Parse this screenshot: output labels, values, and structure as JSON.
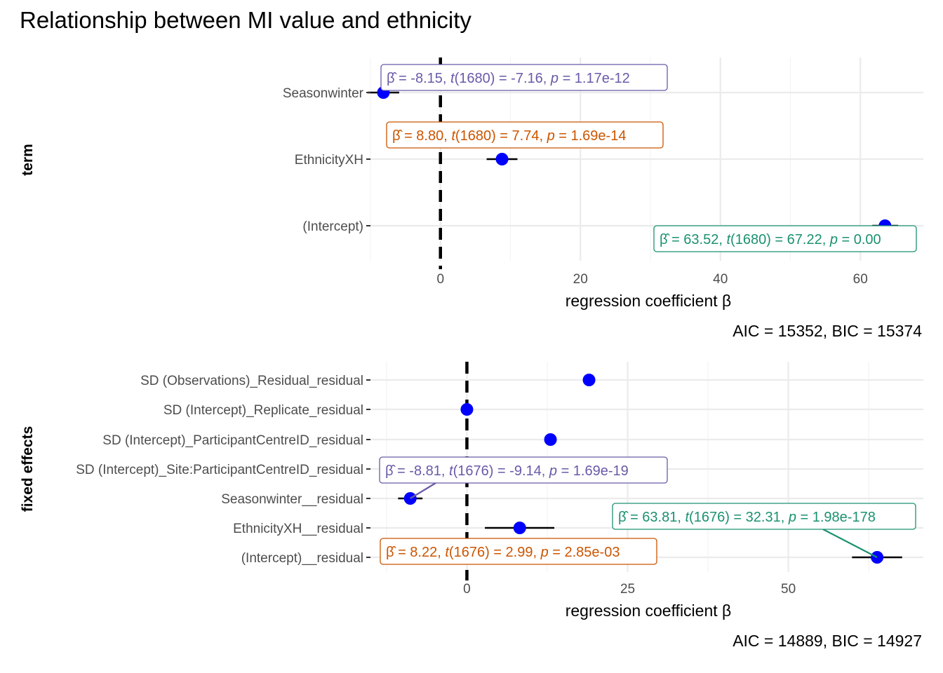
{
  "title": "Relationship between MI value and ethnicity",
  "colors": {
    "point": "#0000ff",
    "purple": "#6a5aa8",
    "orange": "#cc5500",
    "green": "#1b9170",
    "ci": "#000000",
    "zero_line": "#000000"
  },
  "chart_data": [
    {
      "type": "coefficient-plot",
      "ylabel": "term",
      "xlabel": "regression coefficient β",
      "xlim": [
        -10,
        69
      ],
      "xticks": [
        0,
        20,
        40,
        60
      ],
      "xtick_labels": [
        "0",
        "20",
        "40",
        "60"
      ],
      "reference_line": 0,
      "fit_stats": "AIC = 15352, BIC = 15374",
      "terms": [
        {
          "name": "Seasonwinter",
          "estimate": -8.15,
          "ci": [
            -10.4,
            -5.9
          ],
          "label": {
            "beta": "-8.15",
            "df": "1680",
            "t": "-7.16",
            "p": "1.17e-12",
            "color": "purple"
          }
        },
        {
          "name": "EthnicityXH",
          "estimate": 8.8,
          "ci": [
            6.6,
            11.0
          ],
          "label": {
            "beta": "8.80",
            "df": "1680",
            "t": "7.74",
            "p": "1.69e-14",
            "color": "orange"
          }
        },
        {
          "name": "(Intercept)",
          "estimate": 63.52,
          "ci": [
            61.7,
            65.4
          ],
          "label": {
            "beta": "63.52",
            "df": "1680",
            "t": "67.22",
            "p": "0.00",
            "color": "green"
          }
        }
      ]
    },
    {
      "type": "coefficient-plot",
      "ylabel": "fixed effects",
      "xlabel": "regression coefficient β",
      "xlim": [
        -15,
        71
      ],
      "xticks": [
        0,
        25,
        50
      ],
      "xtick_labels": [
        "0",
        "25",
        "50"
      ],
      "reference_line": 0,
      "fit_stats": "AIC = 14889, BIC = 14927",
      "terms": [
        {
          "name": "SD (Observations)_Residual_residual",
          "estimate": 19.0
        },
        {
          "name": "SD (Intercept)_Replicate_residual",
          "estimate": 0.0
        },
        {
          "name": "SD (Intercept)_ParticipantCentreID_residual",
          "estimate": 13.0
        },
        {
          "name": "SD (Intercept)_Site:ParticipantCentreID_residual",
          "estimate": null
        },
        {
          "name": "Seasonwinter__residual",
          "estimate": -8.81,
          "ci": [
            -10.7,
            -6.9
          ],
          "label": {
            "beta": "-8.81",
            "df": "1676",
            "t": "-9.14",
            "p": "1.69e-19",
            "color": "purple"
          }
        },
        {
          "name": "EthnicityXH__residual",
          "estimate": 8.22,
          "ci": [
            2.8,
            13.6
          ],
          "label": {
            "beta": "8.22",
            "df": "1676",
            "t": "2.99",
            "p": "2.85e-03",
            "color": "orange"
          }
        },
        {
          "name": "(Intercept)__residual",
          "estimate": 63.81,
          "ci": [
            59.9,
            67.7
          ],
          "label": {
            "beta": "63.81",
            "df": "1676",
            "t": "32.31",
            "p": "1.98e-178",
            "color": "green"
          }
        }
      ]
    }
  ]
}
